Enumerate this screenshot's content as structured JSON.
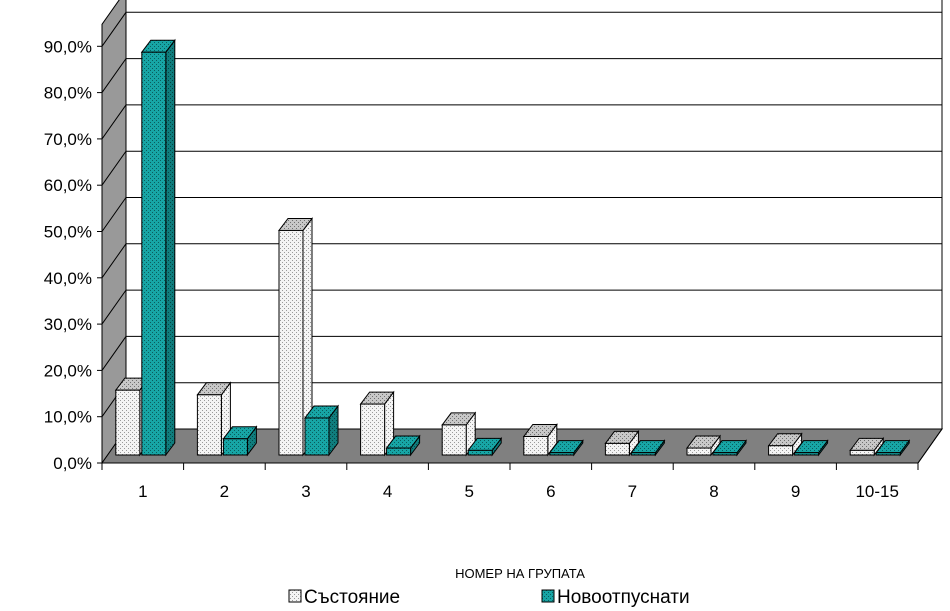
{
  "chart_data": {
    "type": "bar",
    "xlabel": "НОМЕР НА ГРУПАТА",
    "ylabel": "",
    "ylim": [
      0,
      90
    ],
    "y_ticks": [
      "0,0%",
      "10,0%",
      "20,0%",
      "30,0%",
      "40,0%",
      "50,0%",
      "60,0%",
      "70,0%",
      "80,0%",
      "90,0%"
    ],
    "categories": [
      "1",
      "2",
      "3",
      "4",
      "5",
      "6",
      "7",
      "8",
      "9",
      "10-15"
    ],
    "series": [
      {
        "name": "Състояние",
        "values": [
          14.0,
          13.0,
          48.5,
          11.0,
          6.5,
          4.0,
          2.5,
          1.5,
          2.0,
          1.0
        ],
        "color": "#e0e0e0"
      },
      {
        "name": "Новоотпуснати",
        "values": [
          87.0,
          3.5,
          8.0,
          1.5,
          1.0,
          0.5,
          0.5,
          0.5,
          0.5,
          0.5
        ],
        "color": "#139a9a"
      }
    ],
    "grid": true,
    "legend": "bottom",
    "style": "3d-clustered-column"
  }
}
